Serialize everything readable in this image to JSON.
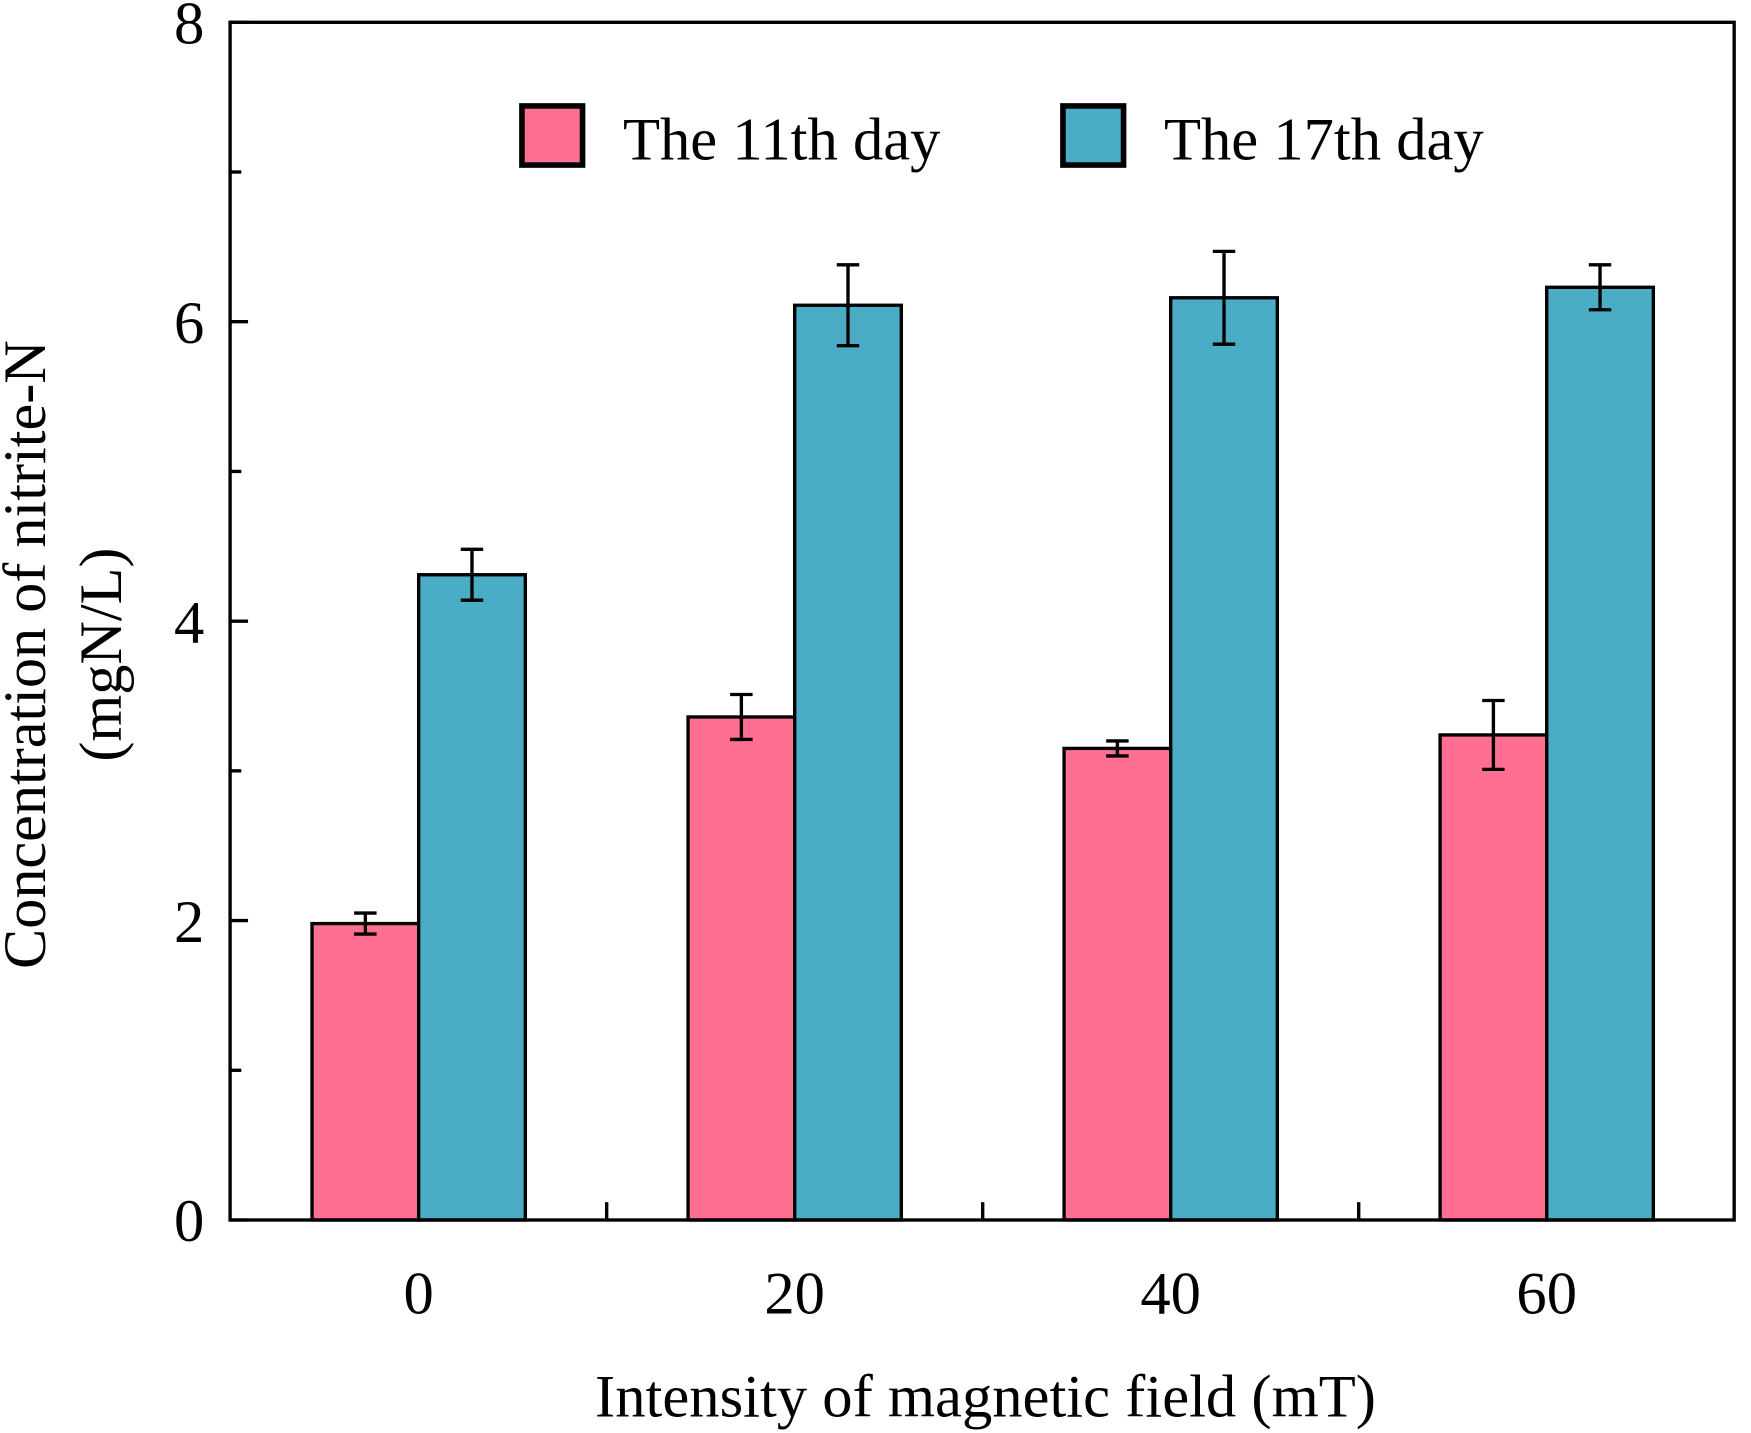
{
  "chart_data": {
    "type": "bar",
    "title": "",
    "xlabel": "Intensity of magnetic field (mT)",
    "ylabel_line1": "Concentration of nitrite-N",
    "ylabel_line2": "(mgN/L)",
    "categories": [
      "0",
      "20",
      "40",
      "60"
    ],
    "ylim": [
      0,
      8
    ],
    "yticks": [
      "0",
      "2",
      "4",
      "6",
      "8"
    ],
    "yminor": [
      1,
      3,
      5,
      7
    ],
    "legend_position": "top",
    "series": [
      {
        "name": "The 11th day",
        "color": "#FF6F91",
        "values": [
          1.98,
          3.36,
          3.15,
          3.24
        ],
        "errors": [
          0.07,
          0.15,
          0.05,
          0.23
        ]
      },
      {
        "name": "The 17th day",
        "color": "#4BACC6",
        "values": [
          4.31,
          6.11,
          6.16,
          6.23
        ],
        "errors": [
          0.17,
          0.27,
          0.31,
          0.15
        ]
      }
    ]
  }
}
